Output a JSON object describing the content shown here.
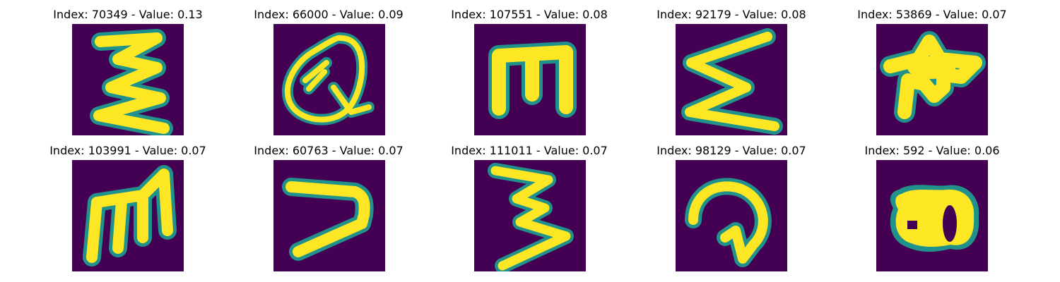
{
  "colors": {
    "background": "#440154",
    "edge": "#21918c",
    "foreground": "#fde725"
  },
  "panels": [
    {
      "title": "Index: 70349 - Value: 0.13",
      "glyph": "zigzag-e-glyph"
    },
    {
      "title": "Index: 66000 - Value: 0.09",
      "glyph": "loop-q-glyph"
    },
    {
      "title": "Index: 107551 - Value: 0.08",
      "glyph": "m-comb-glyph"
    },
    {
      "title": "Index: 92179 - Value: 0.08",
      "glyph": "zigzag-sigma-glyph"
    },
    {
      "title": "Index: 53869 - Value: 0.07",
      "glyph": "blob-star-glyph"
    },
    {
      "title": "Index: 103991 - Value: 0.07",
      "glyph": "script-m-glyph"
    },
    {
      "title": "Index: 60763 - Value: 0.07",
      "glyph": "hook-seven-glyph"
    },
    {
      "title": "Index: 111011 - Value: 0.07",
      "glyph": "zigzag-three-glyph"
    },
    {
      "title": "Index: 98129 - Value: 0.07",
      "glyph": "curl-nine-glyph"
    },
    {
      "title": "Index: 592 - Value: 0.06",
      "glyph": "blob-eight-glyph"
    }
  ]
}
